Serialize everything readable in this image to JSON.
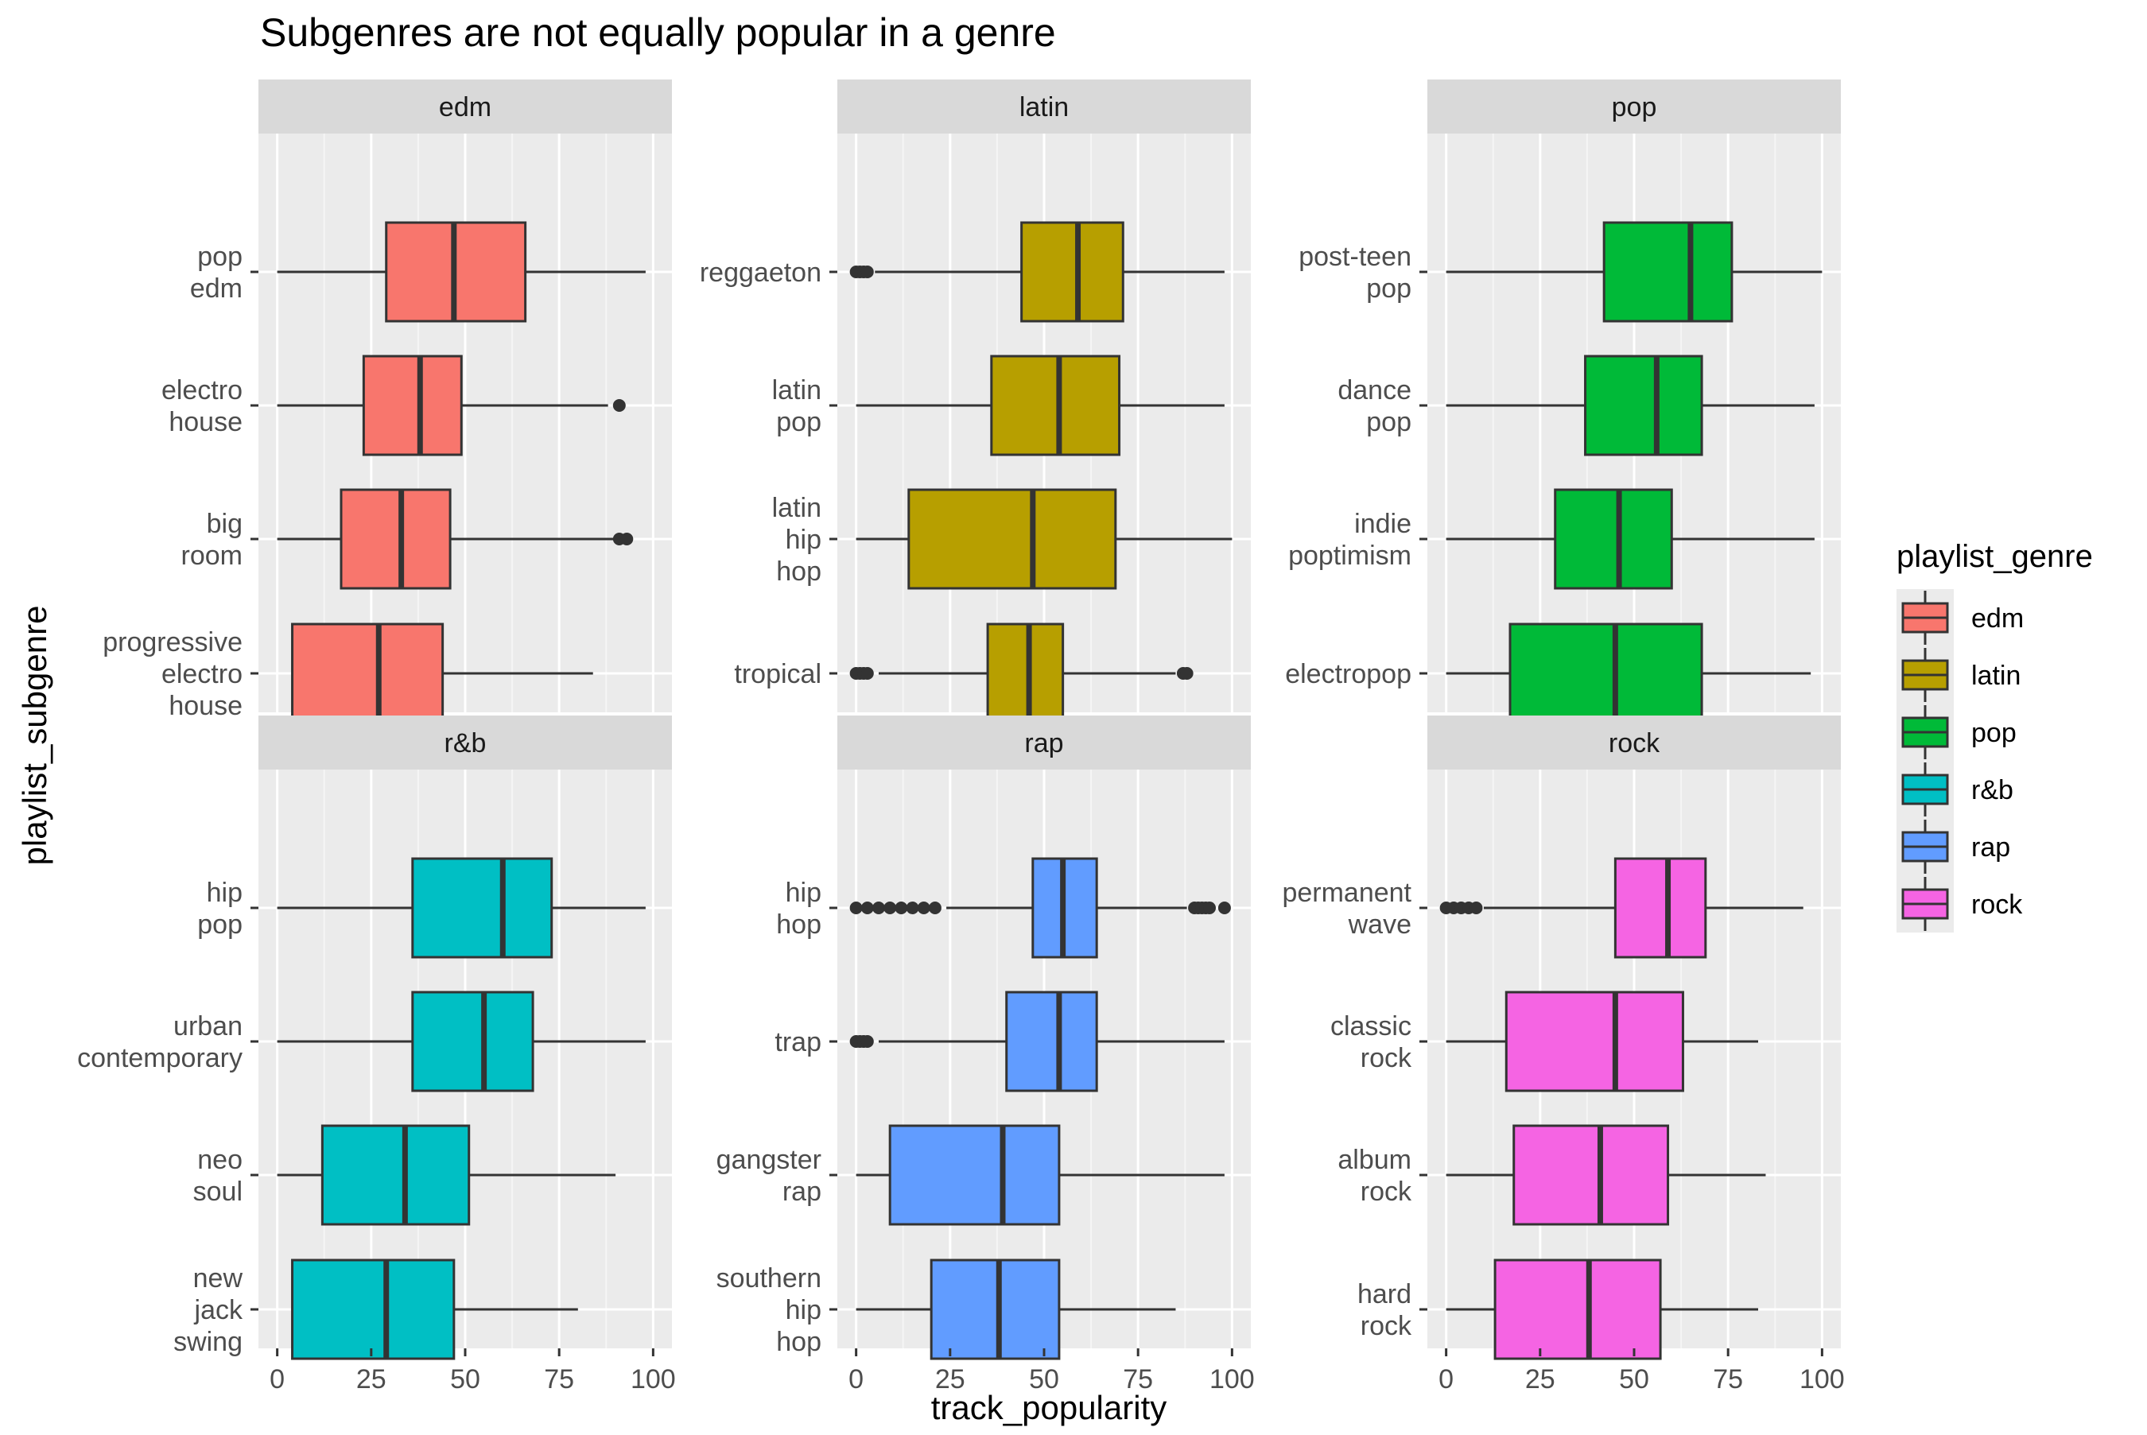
{
  "chart_data": {
    "type": "boxplot",
    "title": "Subgenres are not equally popular in a genre",
    "xlabel": "track_popularity",
    "ylabel": "playlist_subgenre",
    "xlim": [
      -5,
      105
    ],
    "x_ticks": [
      0,
      25,
      50,
      75,
      100
    ],
    "legend": {
      "title": "playlist_genre",
      "position": "right",
      "entries": [
        {
          "label": "edm",
          "color": "#F8766D"
        },
        {
          "label": "latin",
          "color": "#B79F00"
        },
        {
          "label": "pop",
          "color": "#00BA38"
        },
        {
          "label": "r&b",
          "color": "#00BFC4"
        },
        {
          "label": "rap",
          "color": "#619CFF"
        },
        {
          "label": "rock",
          "color": "#F564E3"
        }
      ]
    },
    "panels": [
      {
        "genre": "edm",
        "color": "#F8766D",
        "subgenres": [
          {
            "label": [
              "pop",
              "edm"
            ],
            "min": 0,
            "q1": 29,
            "median": 47,
            "q3": 66,
            "max": 98,
            "outliers": []
          },
          {
            "label": [
              "electro",
              "house"
            ],
            "min": 0,
            "q1": 23,
            "median": 38,
            "q3": 49,
            "max": 88,
            "outliers": [
              91
            ]
          },
          {
            "label": [
              "big",
              "room"
            ],
            "min": 0,
            "q1": 17,
            "median": 33,
            "q3": 46,
            "max": 90,
            "outliers": [
              91,
              93
            ]
          },
          {
            "label": [
              "progressive",
              "electro",
              "house"
            ],
            "min": 4,
            "q1": 4,
            "median": 27,
            "q3": 44,
            "max": 84,
            "outliers": []
          }
        ]
      },
      {
        "genre": "latin",
        "color": "#B79F00",
        "subgenres": [
          {
            "label": [
              "reggaeton"
            ],
            "min": 5,
            "q1": 44,
            "median": 59,
            "q3": 71,
            "max": 98,
            "outliers": [
              0,
              1,
              2,
              3
            ]
          },
          {
            "label": [
              "latin",
              "pop"
            ],
            "min": 0,
            "q1": 36,
            "median": 54,
            "q3": 70,
            "max": 98,
            "outliers": []
          },
          {
            "label": [
              "latin",
              "hip",
              "hop"
            ],
            "min": 0,
            "q1": 14,
            "median": 47,
            "q3": 69,
            "max": 100,
            "outliers": []
          },
          {
            "label": [
              "tropical"
            ],
            "min": 6,
            "q1": 35,
            "median": 46,
            "q3": 55,
            "max": 85,
            "outliers": [
              0,
              1,
              2,
              3,
              87,
              88
            ]
          }
        ]
      },
      {
        "genre": "pop",
        "color": "#00BA38",
        "subgenres": [
          {
            "label": [
              "post-teen",
              "pop"
            ],
            "min": 0,
            "q1": 42,
            "median": 65,
            "q3": 76,
            "max": 100,
            "outliers": []
          },
          {
            "label": [
              "dance",
              "pop"
            ],
            "min": 0,
            "q1": 37,
            "median": 56,
            "q3": 68,
            "max": 98,
            "outliers": []
          },
          {
            "label": [
              "indie",
              "poptimism"
            ],
            "min": 0,
            "q1": 29,
            "median": 46,
            "q3": 60,
            "max": 98,
            "outliers": []
          },
          {
            "label": [
              "electropop"
            ],
            "min": 0,
            "q1": 17,
            "median": 45,
            "q3": 68,
            "max": 97,
            "outliers": []
          }
        ]
      },
      {
        "genre": "r&b",
        "color": "#00BFC4",
        "subgenres": [
          {
            "label": [
              "hip",
              "pop"
            ],
            "min": 0,
            "q1": 36,
            "median": 60,
            "q3": 73,
            "max": 98,
            "outliers": []
          },
          {
            "label": [
              "urban",
              "contemporary"
            ],
            "min": 0,
            "q1": 36,
            "median": 55,
            "q3": 68,
            "max": 98,
            "outliers": []
          },
          {
            "label": [
              "neo",
              "soul"
            ],
            "min": 0,
            "q1": 12,
            "median": 34,
            "q3": 51,
            "max": 90,
            "outliers": []
          },
          {
            "label": [
              "new",
              "jack",
              "swing"
            ],
            "min": 4,
            "q1": 4,
            "median": 29,
            "q3": 47,
            "max": 80,
            "outliers": []
          }
        ]
      },
      {
        "genre": "rap",
        "color": "#619CFF",
        "subgenres": [
          {
            "label": [
              "hip",
              "hop"
            ],
            "min": 24,
            "q1": 47,
            "median": 55,
            "q3": 64,
            "max": 88,
            "outliers": [
              0,
              3,
              6,
              9,
              12,
              15,
              18,
              21,
              90,
              91,
              92,
              93,
              94,
              98
            ]
          },
          {
            "label": [
              "trap"
            ],
            "min": 6,
            "q1": 40,
            "median": 54,
            "q3": 64,
            "max": 98,
            "outliers": [
              0,
              1,
              2,
              3
            ]
          },
          {
            "label": [
              "gangster",
              "rap"
            ],
            "min": 0,
            "q1": 9,
            "median": 39,
            "q3": 54,
            "max": 98,
            "outliers": []
          },
          {
            "label": [
              "southern",
              "hip",
              "hop"
            ],
            "min": 0,
            "q1": 20,
            "median": 38,
            "q3": 54,
            "max": 85,
            "outliers": []
          }
        ]
      },
      {
        "genre": "rock",
        "color": "#F564E3",
        "subgenres": [
          {
            "label": [
              "permanent",
              "wave"
            ],
            "min": 10,
            "q1": 45,
            "median": 59,
            "q3": 69,
            "max": 95,
            "outliers": [
              0,
              2,
              4,
              6,
              8
            ]
          },
          {
            "label": [
              "classic",
              "rock"
            ],
            "min": 0,
            "q1": 16,
            "median": 45,
            "q3": 63,
            "max": 83,
            "outliers": []
          },
          {
            "label": [
              "album",
              "rock"
            ],
            "min": 0,
            "q1": 18,
            "median": 41,
            "q3": 59,
            "max": 85,
            "outliers": []
          },
          {
            "label": [
              "hard",
              "rock"
            ],
            "min": 0,
            "q1": 13,
            "median": 38,
            "q3": 57,
            "max": 83,
            "outliers": []
          }
        ]
      }
    ]
  }
}
